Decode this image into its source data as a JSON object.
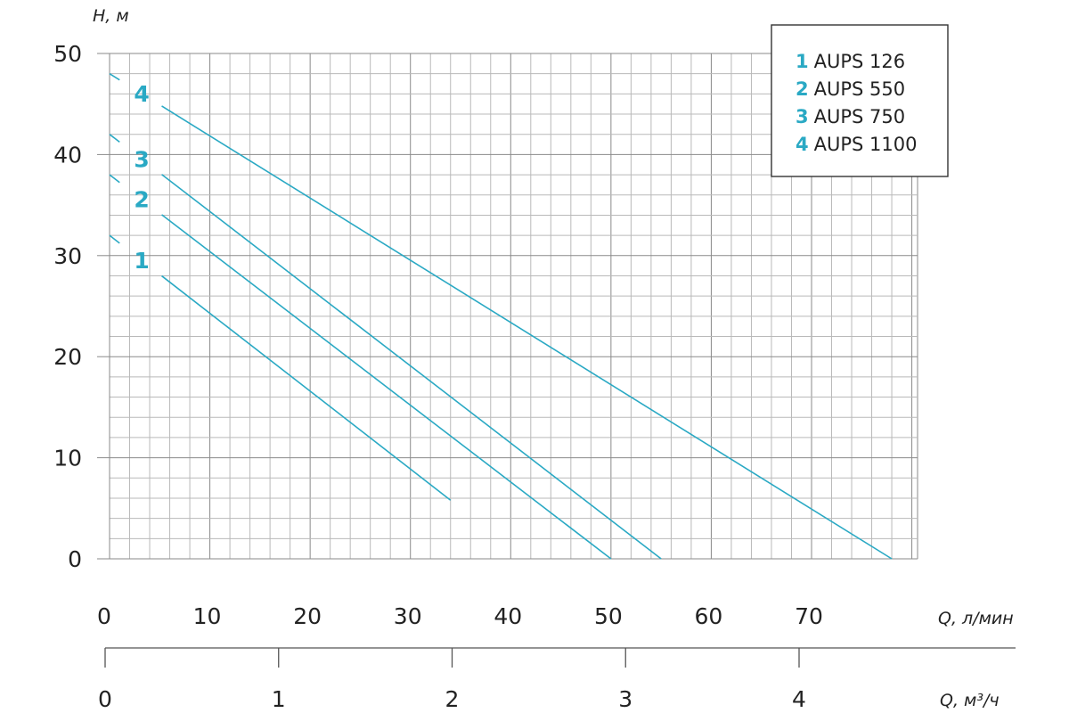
{
  "chart_data": {
    "type": "line",
    "title": "",
    "xlabel": "Q, л/мин",
    "x2label": "Q, м³/ч",
    "ylabel": "H, м",
    "xlim": [
      0,
      80
    ],
    "ylim": [
      0,
      50
    ],
    "x_ticks": [
      "0",
      "10",
      "20",
      "30",
      "40",
      "50",
      "60",
      "70"
    ],
    "x_tick_values": [
      0,
      10,
      20,
      30,
      40,
      50,
      60,
      70
    ],
    "x2_ticks": [
      "0",
      "1",
      "2",
      "3",
      "4"
    ],
    "x2_tick_values": [
      0,
      1,
      2,
      3,
      4
    ],
    "x2_unit_per_x": 0.06,
    "y_ticks": [
      "0",
      "10",
      "20",
      "30",
      "40",
      "50"
    ],
    "y_tick_values": [
      0,
      10,
      20,
      30,
      40,
      50
    ],
    "grid": true,
    "legend_position": "top-right",
    "color": "#2aa9c4",
    "series": [
      {
        "num": "1",
        "name": "AUPS 126",
        "x": [
          0,
          34
        ],
        "y": [
          32,
          5.8
        ]
      },
      {
        "num": "2",
        "name": "AUPS 550",
        "x": [
          0,
          50
        ],
        "y": [
          38,
          0
        ]
      },
      {
        "num": "3",
        "name": "AUPS 750",
        "x": [
          0,
          55
        ],
        "y": [
          42,
          0
        ]
      },
      {
        "num": "4",
        "name": "AUPS 1100",
        "x": [
          0,
          78
        ],
        "y": [
          48,
          0
        ]
      }
    ]
  }
}
